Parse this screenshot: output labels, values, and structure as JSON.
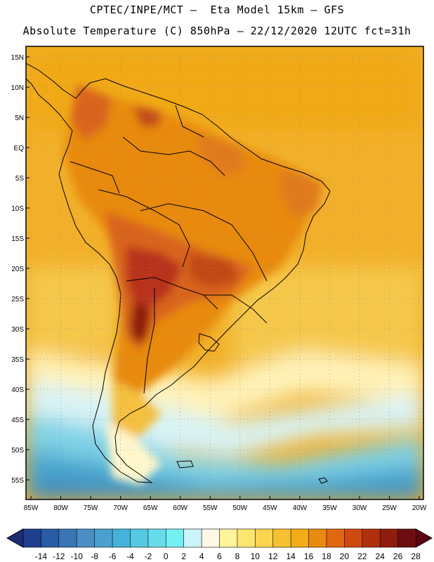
{
  "header": {
    "line1": "CPTEC/INPE/MCT –  Eta Model 15km – GFS",
    "line2": "Absolute Temperature (C) 850hPa – 22/12/2020 12UTC fct=31h"
  },
  "map": {
    "lat_labels": [
      "15N",
      "10N",
      "5N",
      "EQ",
      "5S",
      "10S",
      "15S",
      "20S",
      "25S",
      "30S",
      "35S",
      "40S",
      "45S",
      "50S",
      "55S"
    ],
    "lon_labels": [
      "85W",
      "80W",
      "75W",
      "70W",
      "65W",
      "60W",
      "55W",
      "50W",
      "45W",
      "40W",
      "35W",
      "30W",
      "25W",
      "20W"
    ]
  },
  "colorbar": {
    "labels": [
      "-14",
      "-12",
      "-10",
      "-8",
      "-6",
      "-4",
      "-2",
      "0",
      "2",
      "4",
      "6",
      "8",
      "10",
      "12",
      "14",
      "16",
      "18",
      "20",
      "22",
      "24",
      "26",
      "28"
    ],
    "colors": [
      "#1f3f8f",
      "#2a5ba6",
      "#3a75b5",
      "#4a8ec4",
      "#4aa0cf",
      "#45b3d9",
      "#55c8e3",
      "#66dceb",
      "#74f0f2",
      "#cdf4f9",
      "#fff8e6",
      "#fff49a",
      "#fde670",
      "#fbd550",
      "#f5c032",
      "#f2ac18",
      "#e88b10",
      "#e06810",
      "#d04a10",
      "#b0300d",
      "#8e1d0d",
      "#6e0d10"
    ],
    "low_color": "#1b2f70",
    "high_color": "#5c0412"
  },
  "colors": {
    "gridline": "#8c8c8c",
    "border": "#000000"
  }
}
